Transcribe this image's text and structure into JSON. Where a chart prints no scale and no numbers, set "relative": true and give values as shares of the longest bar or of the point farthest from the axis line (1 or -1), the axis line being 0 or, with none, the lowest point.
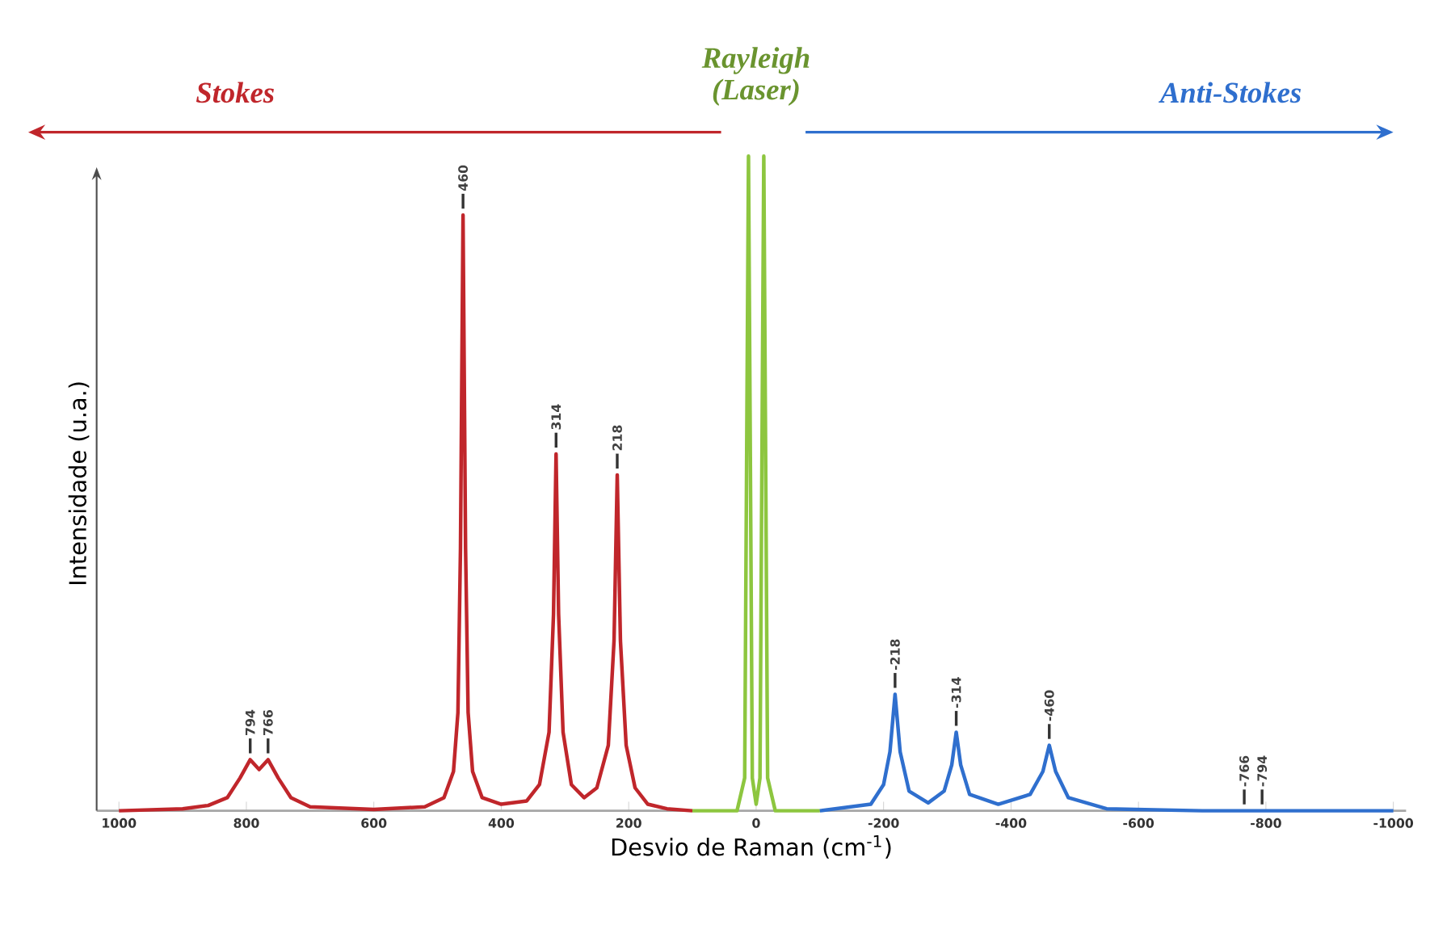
{
  "chart_data": {
    "type": "line",
    "xlabel": "Desvio de Raman (cm$^{-1}$)",
    "ylabel": "Intensidade (u.a.)",
    "relative": true,
    "xlim": [
      1035,
      -1020
    ],
    "xticks": [
      1000,
      800,
      600,
      400,
      200,
      0,
      -200,
      -400,
      -600,
      -800,
      -1000
    ],
    "grid": false,
    "marker": "none",
    "line_style": "solid",
    "series": [
      {
        "color": "#c0262b",
        "x": [
          1000,
          900,
          860,
          830,
          810,
          794,
          780,
          766,
          750,
          730,
          700,
          600,
          520,
          490,
          475,
          468,
          464,
          460,
          456,
          452,
          445,
          430,
          400,
          360,
          340,
          325,
          318,
          314,
          310,
          303,
          290,
          270,
          250,
          232,
          223,
          218,
          213,
          204,
          190,
          170,
          140,
          100
        ],
        "values": [
          0,
          0.003,
          0.008,
          0.02,
          0.05,
          0.078,
          0.063,
          0.078,
          0.05,
          0.02,
          0.006,
          0.002,
          0.006,
          0.02,
          0.06,
          0.15,
          0.4,
          0.91,
          0.4,
          0.15,
          0.06,
          0.02,
          0.01,
          0.015,
          0.04,
          0.12,
          0.3,
          0.545,
          0.3,
          0.12,
          0.04,
          0.02,
          0.035,
          0.1,
          0.26,
          0.513,
          0.26,
          0.1,
          0.035,
          0.01,
          0.003,
          0
        ]
      },
      {
        "color": "#8dc63f",
        "x": [
          100,
          30,
          18,
          12,
          6,
          0,
          -6,
          -12,
          -18,
          -30,
          -100
        ],
        "values": [
          0,
          0,
          0.05,
          1,
          0.05,
          0.01,
          0.05,
          1,
          0.05,
          0,
          0
        ]
      },
      {
        "color": "#2f6fce",
        "x": [
          -100,
          -180,
          -200,
          -210,
          -218,
          -226,
          -240,
          -270,
          -295,
          -307,
          -314,
          -321,
          -335,
          -380,
          -430,
          -450,
          -460,
          -470,
          -490,
          -550,
          -700,
          -1000
        ],
        "values": [
          0,
          0.01,
          0.04,
          0.09,
          0.178,
          0.09,
          0.03,
          0.012,
          0.03,
          0.07,
          0.12,
          0.07,
          0.025,
          0.01,
          0.025,
          0.06,
          0.1,
          0.06,
          0.02,
          0.003,
          0,
          0
        ]
      }
    ],
    "annotations": [
      "Stokes",
      "Rayleigh (Laser)",
      "Anti-Stokes",
      {
        "text": "794",
        "x": 794,
        "y": 0.078
      },
      {
        "text": "766",
        "x": 766,
        "y": 0.078
      },
      {
        "text": "460",
        "x": 460,
        "y": 0.91
      },
      {
        "text": "314",
        "x": 314,
        "y": 0.545
      },
      {
        "text": "218",
        "x": 218,
        "y": 0.513
      },
      {
        "text": "-218",
        "x": -218,
        "y": 0.178
      },
      {
        "text": "-314",
        "x": -314,
        "y": 0.12
      },
      {
        "text": "-460",
        "x": -460,
        "y": 0.1
      },
      {
        "text": "-766",
        "x": -766,
        "y": 0
      },
      {
        "text": "-794",
        "x": -794,
        "y": 0
      }
    ]
  }
}
